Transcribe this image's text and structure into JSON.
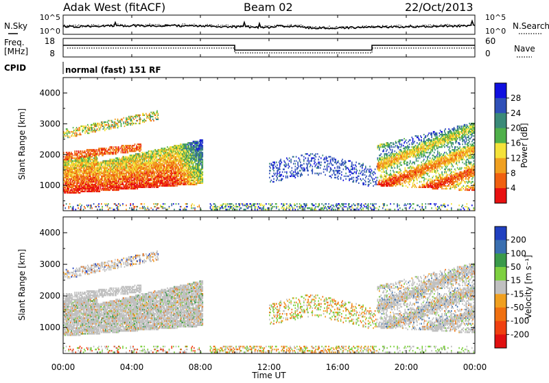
{
  "header": {
    "station": "Adak West (fitACF)",
    "beam": "Beam 02",
    "date": "22/Oct/2013"
  },
  "strip_panels": {
    "nsky_label": "N.Sky",
    "nsky_ticks": [
      "10^5",
      "10^0"
    ],
    "nsearch_label": "N.Search",
    "nsearch_ticks": [
      "10^5",
      "10^0"
    ],
    "freq_label_line1": "Freq.",
    "freq_label_line2": "[MHz]",
    "freq_ticks": [
      "18",
      "8"
    ],
    "nave_label": "Nave",
    "nave_ticks": [
      "60",
      "0"
    ],
    "cpid_label": "CPID",
    "cpid_text": "normal (fast) 151 RF"
  },
  "x_axis": {
    "label": "Time UT",
    "ticks": [
      "00:00",
      "04:00",
      "08:00",
      "12:00",
      "16:00",
      "20:00",
      "00:00"
    ]
  },
  "chart_data": [
    {
      "type": "heatmap",
      "quantity": "Power",
      "ylabel": "Slant Range [km]",
      "yticks": [
        1000,
        2000,
        3000,
        4000
      ],
      "ylim": [
        180,
        4500
      ],
      "xlim_hours": [
        0,
        24
      ],
      "colorbar_label": "Power [dB]",
      "colorbar_ticks": [
        "28",
        "24",
        "20",
        "16",
        "12",
        "8",
        "4"
      ],
      "colorscale": [
        "#1010e0",
        "#2f50b8",
        "#3a8a78",
        "#4fb04a",
        "#f4e23a",
        "#f0a020",
        "#f06010",
        "#e81010"
      ],
      "color_range": [
        0,
        32
      ]
    },
    {
      "type": "heatmap",
      "quantity": "Velocity",
      "ylabel": "Slant Range [km]",
      "yticks": [
        1000,
        2000,
        3000,
        4000
      ],
      "ylim": [
        180,
        4500
      ],
      "xlim_hours": [
        0,
        24
      ],
      "colorbar_label": "Velocity [m s⁻¹]",
      "colorbar_ticks": [
        "200",
        "100",
        "50",
        "15",
        "-15",
        "-50",
        "-100",
        "-200"
      ],
      "colorscale": [
        "#2040c0",
        "#3a6fb0",
        "#3a9a4a",
        "#7ed040",
        "#c0c0c0",
        "#f0a020",
        "#f07010",
        "#f04010",
        "#e01010"
      ]
    }
  ]
}
